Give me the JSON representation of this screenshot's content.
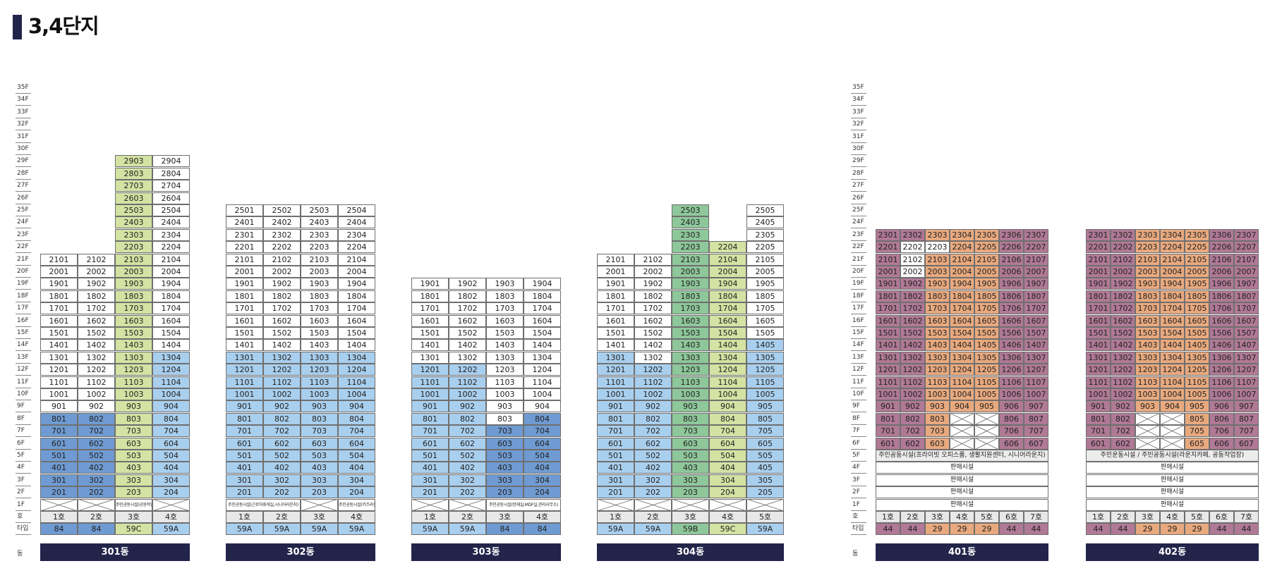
{
  "header": {
    "title": "3,4단지"
  },
  "floors_left": [
    "35F",
    "34F",
    "33F",
    "32F",
    "31F",
    "30F",
    "29F",
    "28F",
    "27F",
    "26F",
    "25F",
    "24F",
    "23F",
    "22F",
    "21F",
    "20F",
    "19F",
    "18F",
    "17F",
    "16F",
    "15F",
    "14F",
    "13F",
    "12F",
    "11F",
    "10F",
    "9F",
    "8F",
    "7F",
    "6F",
    "5F",
    "4F",
    "3F",
    "2F",
    "1F",
    "호",
    "타입"
  ],
  "floors_right": [
    "35F",
    "34F",
    "33F",
    "32F",
    "31F",
    "30F",
    "29F",
    "28F",
    "27F",
    "26F",
    "25F",
    "24F",
    "23F",
    "22F",
    "21F",
    "20F",
    "19F",
    "18F",
    "17F",
    "16F",
    "15F",
    "14F",
    "13F",
    "12F",
    "11F",
    "10F",
    "9F",
    "8F",
    "7F",
    "6F",
    "5F",
    "4F",
    "3F",
    "2F",
    "1F",
    "호",
    "타입"
  ],
  "dong_label": "동",
  "colors": {
    "white": "#ffffff",
    "light_blue": "#a9cfee",
    "blue": "#6f9bd2",
    "green_light": "#d4e2a3",
    "green": "#8ec79a",
    "plum": "#b07996",
    "orange": "#e8a97e",
    "dong_bar": "#22244a",
    "header_bar": "#22244a"
  },
  "buildings": [
    {
      "name": "301동",
      "units": [
        {
          "col": 1,
          "min": 2,
          "max": 21,
          "colors": [
            [
              2,
              8,
              "blue"
            ],
            [
              9,
              12,
              "white"
            ],
            [
              13,
              21,
              "white"
            ]
          ],
          "ho": "1호",
          "type": "84",
          "type_color": "blue",
          "x_1f": true
        },
        {
          "col": 2,
          "min": 2,
          "max": 21,
          "colors": [
            [
              2,
              8,
              "blue"
            ],
            [
              9,
              21,
              "white"
            ]
          ],
          "ho": "2호",
          "type": "84",
          "type_color": "blue",
          "x_1f": true
        },
        {
          "col": 3,
          "min": 2,
          "max": 29,
          "colors": [
            [
              2,
              29,
              "green_light"
            ]
          ],
          "ho": "3호",
          "type": "59C",
          "type_color": "green_light",
          "fac_1f": "주민공동시설(공동작업장)"
        },
        {
          "col": 4,
          "min": 2,
          "max": 29,
          "colors": [
            [
              2,
              13,
              "light_blue"
            ],
            [
              14,
              29,
              "white"
            ]
          ],
          "ho": "4호",
          "type": "59A",
          "type_color": "light_blue",
          "x_1f": true
        }
      ]
    },
    {
      "name": "302동",
      "units": [
        {
          "col": 1,
          "min": 2,
          "max": 25,
          "colors": [
            [
              2,
              13,
              "light_blue"
            ],
            [
              14,
              25,
              "white"
            ]
          ],
          "ho": "1호",
          "type": "59A",
          "type_color": "light_blue",
          "fac_1f": "주민공동시설(근로자휴게실,시니어라운지)",
          "fac_span": 2
        },
        {
          "col": 2,
          "min": 2,
          "max": 25,
          "colors": [
            [
              2,
              13,
              "light_blue"
            ],
            [
              14,
              25,
              "white"
            ]
          ],
          "ho": "2호",
          "type": "59A",
          "type_color": "light_blue"
        },
        {
          "col": 3,
          "min": 2,
          "max": 25,
          "colors": [
            [
              2,
              13,
              "light_blue"
            ],
            [
              14,
              25,
              "white"
            ]
          ],
          "ho": "3호",
          "type": "59A",
          "type_color": "light_blue",
          "x_1f": true
        },
        {
          "col": 4,
          "min": 2,
          "max": 25,
          "colors": [
            [
              2,
              13,
              "light_blue"
            ],
            [
              14,
              25,
              "white"
            ]
          ],
          "ho": "4호",
          "type": "59A",
          "type_color": "light_blue",
          "fac_1f": "주민공동시설(키즈라운지)"
        }
      ]
    },
    {
      "name": "303동",
      "units": [
        {
          "col": 1,
          "min": 2,
          "max": 19,
          "colors": [
            [
              2,
              12,
              "light_blue"
            ],
            [
              13,
              19,
              "white"
            ]
          ],
          "ho": "1호",
          "type": "59A",
          "type_color": "light_blue",
          "x_1f": true
        },
        {
          "col": 2,
          "min": 2,
          "max": 19,
          "colors": [
            [
              2,
              12,
              "light_blue"
            ],
            [
              13,
              19,
              "white"
            ]
          ],
          "ho": "2호",
          "type": "59A",
          "type_color": "light_blue",
          "x_1f": true
        },
        {
          "col": 3,
          "min": 2,
          "max": 19,
          "colors": [
            [
              2,
              7,
              "blue"
            ],
            [
              8,
              8,
              "white"
            ],
            [
              9,
              19,
              "white"
            ]
          ],
          "ho": "3호",
          "type": "84",
          "type_color": "blue",
          "fac_1f": "주민공동시설(방재실,MDF실,관리사무소)",
          "fac_span": 2
        },
        {
          "col": 4,
          "min": 2,
          "max": 19,
          "colors": [
            [
              2,
              8,
              "blue"
            ],
            [
              9,
              19,
              "white"
            ]
          ],
          "ho": "4호",
          "type": "84",
          "type_color": "blue"
        }
      ]
    },
    {
      "name": "304동",
      "units": [
        {
          "col": 1,
          "min": 2,
          "max": 21,
          "colors": [
            [
              2,
              13,
              "light_blue"
            ],
            [
              14,
              21,
              "white"
            ]
          ],
          "ho": "1호",
          "type": "59A",
          "type_color": "light_blue",
          "x_1f": true
        },
        {
          "col": 2,
          "min": 2,
          "max": 21,
          "colors": [
            [
              2,
              12,
              "light_blue"
            ],
            [
              13,
              21,
              "white"
            ]
          ],
          "ho": "2호",
          "type": "59A",
          "type_color": "light_blue",
          "x_1f": true
        },
        {
          "col": 3,
          "min": 2,
          "max": 25,
          "colors": [
            [
              2,
              25,
              "green"
            ]
          ],
          "ho": "3호",
          "type": "59B",
          "type_color": "green",
          "x_1f": true
        },
        {
          "col": 4,
          "min": 2,
          "max": 22,
          "colors": [
            [
              2,
              22,
              "green_light"
            ]
          ],
          "ho": "4호",
          "type": "59C",
          "type_color": "green_light",
          "x_1f": true
        },
        {
          "col": 5,
          "min": 2,
          "max": 25,
          "colors": [
            [
              2,
              14,
              "light_blue"
            ],
            [
              15,
              25,
              "white"
            ]
          ],
          "ho": "5호",
          "type": "59A",
          "type_color": "light_blue",
          "x_1f": true
        }
      ]
    }
  ],
  "buildings4": [
    {
      "name": "401동",
      "facility5": "주민공동시설(프라이빗 오피스룸, 생활지원센터, 시니어라운지)",
      "shops": [
        "판매시설",
        "판매시설",
        "판매시설",
        "판매시설"
      ],
      "units": [
        {
          "ho": "1호",
          "type": "44",
          "type_color": "plum"
        },
        {
          "ho": "2호",
          "type": "44",
          "type_color": "plum"
        },
        {
          "ho": "3호",
          "type": "29",
          "type_color": "orange"
        },
        {
          "ho": "4호",
          "type": "29",
          "type_color": "orange"
        },
        {
          "ho": "5호",
          "type": "29",
          "type_color": "orange"
        },
        {
          "ho": "6호",
          "type": "44",
          "type_color": "plum"
        },
        {
          "ho": "7호",
          "type": "44",
          "type_color": "plum"
        }
      ],
      "white_cells": [
        "2202",
        "2203",
        "2102",
        "2002"
      ],
      "x_cells": [
        [
          4,
          8
        ],
        [
          5,
          8
        ],
        [
          4,
          7
        ],
        [
          5,
          7
        ],
        [
          4,
          6
        ],
        [
          5,
          6
        ]
      ]
    },
    {
      "name": "402동",
      "facility5": "주민운동시설 / 주민공동시설(라운지카페, 공동작업장)",
      "shops": [
        "판매시설",
        "판매시설",
        "판매시설",
        "판매시설"
      ],
      "units": [
        {
          "ho": "1호",
          "type": "44",
          "type_color": "plum"
        },
        {
          "ho": "2호",
          "type": "44",
          "type_color": "plum"
        },
        {
          "ho": "3호",
          "type": "29",
          "type_color": "orange"
        },
        {
          "ho": "4호",
          "type": "29",
          "type_color": "orange"
        },
        {
          "ho": "5호",
          "type": "29",
          "type_color": "orange"
        },
        {
          "ho": "6호",
          "type": "44",
          "type_color": "plum"
        },
        {
          "ho": "7호",
          "type": "44",
          "type_color": "plum"
        }
      ],
      "white_cells": [],
      "x_cells": [
        [
          3,
          8
        ],
        [
          4,
          8
        ],
        [
          3,
          7
        ],
        [
          4,
          7
        ],
        [
          3,
          6
        ],
        [
          4,
          6
        ]
      ]
    }
  ]
}
